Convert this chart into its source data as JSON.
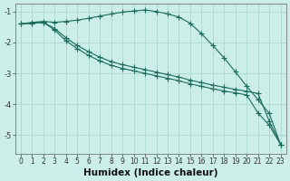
{
  "xlabel": "Humidex (Indice chaleur)",
  "bg_color": "#cceee8",
  "line_color": "#1a6b5a",
  "grid_color": "#aad8d0",
  "xlim": [
    -0.5,
    23.5
  ],
  "ylim": [
    -5.6,
    -0.75
  ],
  "yticks": [
    -5,
    -4,
    -3,
    -2,
    -1
  ],
  "xticks": [
    0,
    1,
    2,
    3,
    4,
    5,
    6,
    7,
    8,
    9,
    10,
    11,
    12,
    13,
    14,
    15,
    16,
    17,
    18,
    19,
    20,
    21,
    22,
    23
  ],
  "line1_x": [
    0,
    1,
    2,
    3,
    4,
    5,
    6,
    7,
    8,
    9,
    10,
    11,
    12,
    13,
    14,
    15,
    16,
    17,
    18,
    19,
    20,
    21,
    22,
    23
  ],
  "line1_y": [
    -1.4,
    -1.35,
    -1.32,
    -1.35,
    -1.32,
    -1.28,
    -1.22,
    -1.15,
    -1.08,
    -1.02,
    -0.98,
    -0.95,
    -1.0,
    -1.08,
    -1.18,
    -1.38,
    -1.72,
    -2.1,
    -2.5,
    -2.95,
    -3.42,
    -3.85,
    -4.3,
    -5.3
  ],
  "line2_x": [
    0,
    1,
    2,
    3,
    4,
    5,
    6,
    7,
    8,
    9,
    10,
    11,
    12,
    13,
    14,
    15,
    16,
    17,
    18,
    19,
    20,
    21,
    22,
    23
  ],
  "line2_y": [
    -1.4,
    -1.38,
    -1.35,
    -1.55,
    -1.85,
    -2.1,
    -2.3,
    -2.48,
    -2.62,
    -2.72,
    -2.8,
    -2.88,
    -2.96,
    -3.04,
    -3.12,
    -3.22,
    -3.3,
    -3.38,
    -3.45,
    -3.52,
    -3.58,
    -3.65,
    -4.55,
    -5.3
  ],
  "line3_x": [
    0,
    1,
    2,
    3,
    4,
    5,
    6,
    7,
    8,
    9,
    10,
    11,
    12,
    13,
    14,
    15,
    16,
    17,
    18,
    19,
    20,
    21,
    22,
    23
  ],
  "line3_y": [
    -1.4,
    -1.38,
    -1.35,
    -1.6,
    -1.95,
    -2.2,
    -2.42,
    -2.6,
    -2.74,
    -2.84,
    -2.92,
    -3.0,
    -3.08,
    -3.16,
    -3.24,
    -3.34,
    -3.42,
    -3.5,
    -3.57,
    -3.63,
    -3.7,
    -4.28,
    -4.68,
    -5.3
  ],
  "tick_fontsize": 5.5,
  "label_fontsize": 7.5
}
